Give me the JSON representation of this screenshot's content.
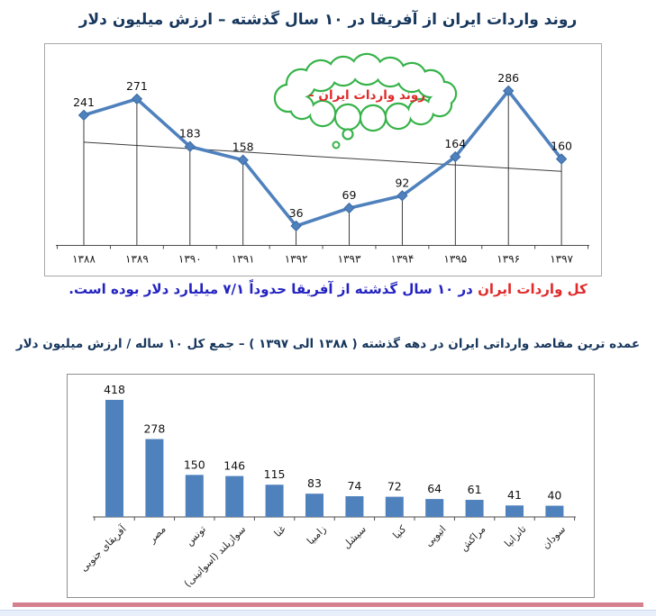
{
  "page": {
    "footer_bar_color": "#d4808f",
    "footer_strip_color": "#e9effa"
  },
  "colors": {
    "title_navy": "#17375d",
    "caption_red": "#e02a2a",
    "caption_blue": "#2323c1",
    "chart_blue": "#4f81bd",
    "cloud_green": "#37b34a"
  },
  "caption": {
    "lead_text": "کل واردات ایران",
    "rest_text": " در ۱۰ سال گذشته از آفریقا حدوداً ۷/۱ میلیارد دلار بوده است."
  },
  "chart_data": [
    {
      "type": "line",
      "title": "روند واردات ایران از آفریقا در ۱۰ سال گذشته – ارزش میلیون دلار",
      "categories": [
        "۱۳۸۸",
        "۱۳۸۹",
        "۱۳۹۰",
        "۱۳۹۱",
        "۱۳۹۲",
        "۱۳۹۳",
        "۱۳۹۴",
        "۱۳۹۵",
        "۱۳۹۶",
        "۱۳۹۷"
      ],
      "values": [
        241,
        271,
        183,
        158,
        36,
        69,
        92,
        164,
        286,
        160
      ],
      "annotation": "روند واردات ایران –",
      "trendline": {
        "start_value": 191,
        "end_value": 137
      },
      "marker": "diamond",
      "drop_lines": true,
      "xlabel": "",
      "ylabel": "",
      "ylim": [
        0,
        370
      ],
      "grid": false,
      "legend": "none"
    },
    {
      "type": "bar",
      "title": "عمده ترین مقاصد وارداتی ایران در دهه گذشته ( ۱۳۸۸ الی ۱۳۹۷ ) – جمع کل ۱۰ ساله / ارزش میلیون دلار",
      "categories": [
        "آفریقای جنوبی",
        "مصر",
        "تونس",
        "سوازیلند (اسواتینی)",
        "غنا",
        "زامبیا",
        "سیشل",
        "کنیا",
        "اتیوپی",
        "مراکش",
        "تانزانیا",
        "سودان"
      ],
      "values": [
        418,
        278,
        150,
        146,
        115,
        83,
        74,
        72,
        64,
        61,
        41,
        40
      ],
      "xlabel": "",
      "ylabel": "",
      "ylim": [
        0,
        500
      ],
      "grid": false,
      "legend": "none"
    }
  ]
}
